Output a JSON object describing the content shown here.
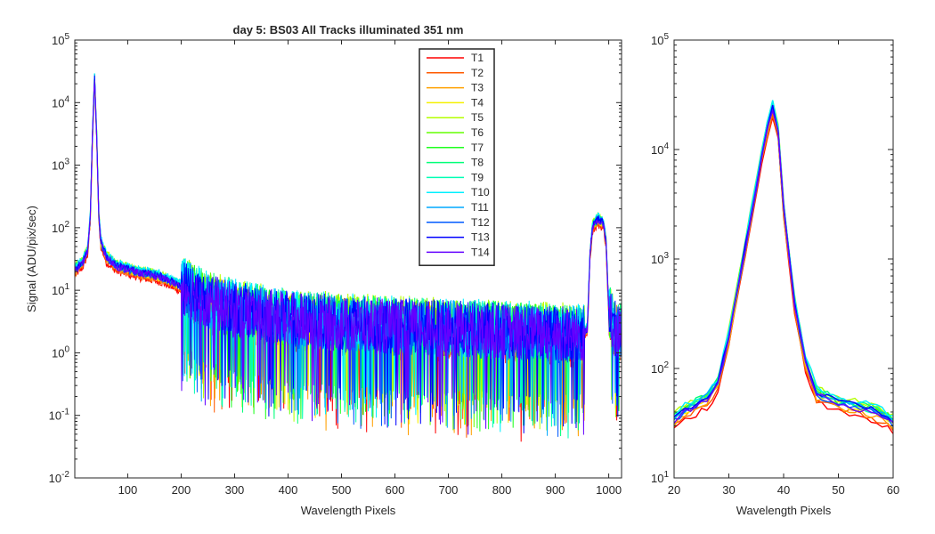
{
  "chart_data": [
    {
      "type": "line",
      "title": "day 5: BS03   All Tracks illuminated   351 nm",
      "xlabel": "Wavelength Pixels",
      "ylabel": "Signal (ADU/pix/sec)",
      "xlim": [
        1,
        1024
      ],
      "ylim": [
        0.01,
        100000
      ],
      "yscale": "log",
      "xticks": [
        100,
        200,
        300,
        400,
        500,
        600,
        700,
        800,
        900,
        1000
      ],
      "xtick_labels": [
        "100",
        "200",
        "300",
        "400",
        "500",
        "600",
        "700",
        "800",
        "900",
        "1000"
      ],
      "ytick_labels": [
        {
          "value": 0.01,
          "base": "10",
          "exp": "-2"
        },
        {
          "value": 0.1,
          "base": "10",
          "exp": "-1"
        },
        {
          "value": 1,
          "base": "10",
          "exp": "0"
        },
        {
          "value": 10,
          "base": "10",
          "exp": "1"
        },
        {
          "value": 100,
          "base": "10",
          "exp": "2"
        },
        {
          "value": 1000,
          "base": "10",
          "exp": "3"
        },
        {
          "value": 10000,
          "base": "10",
          "exp": "4"
        },
        {
          "value": 100000,
          "base": "10",
          "exp": "5"
        }
      ],
      "legend_position": "top-center",
      "series_profile": {
        "x": [
          1,
          15,
          25,
          30,
          34,
          38,
          42,
          46,
          50,
          60,
          80,
          120,
          160,
          200,
          250,
          300,
          400,
          500,
          600,
          700,
          800,
          900,
          950,
          960,
          965,
          970,
          980,
          990,
          995,
          1000,
          1010,
          1024
        ],
        "y": [
          22,
          28,
          45,
          150,
          3000,
          27000,
          3000,
          150,
          60,
          35,
          25,
          20,
          17,
          12,
          7,
          5,
          3.5,
          3,
          2.7,
          2.5,
          2.3,
          2.1,
          2.0,
          2.5,
          40,
          110,
          140,
          120,
          60,
          5,
          2.5,
          2.2
        ]
      },
      "series": [
        {
          "name": "T1",
          "color": "#ff0000",
          "scale": 0.8
        },
        {
          "name": "T2",
          "color": "#ff5a00",
          "scale": 0.85
        },
        {
          "name": "T3",
          "color": "#ffa000",
          "scale": 0.9
        },
        {
          "name": "T4",
          "color": "#f5f000",
          "scale": 0.95
        },
        {
          "name": "T5",
          "color": "#b4ff00",
          "scale": 1.1
        },
        {
          "name": "T6",
          "color": "#64ff00",
          "scale": 1.05
        },
        {
          "name": "T7",
          "color": "#1eff1e",
          "scale": 1.0
        },
        {
          "name": "T8",
          "color": "#00ff78",
          "scale": 1.05
        },
        {
          "name": "T9",
          "color": "#00ffb4",
          "scale": 1.0
        },
        {
          "name": "T10",
          "color": "#00f0ff",
          "scale": 1.1
        },
        {
          "name": "T11",
          "color": "#00a8ff",
          "scale": 1.0
        },
        {
          "name": "T12",
          "color": "#005aff",
          "scale": 0.95
        },
        {
          "name": "T13",
          "color": "#0000ff",
          "scale": 1.0
        },
        {
          "name": "T14",
          "color": "#6400ff",
          "scale": 0.95
        }
      ]
    },
    {
      "type": "line",
      "title": "",
      "xlabel": "Wavelength Pixels",
      "ylabel": "",
      "xlim": [
        20,
        60
      ],
      "ylim": [
        10,
        100000
      ],
      "yscale": "log",
      "xticks": [
        20,
        30,
        40,
        50,
        60
      ],
      "xtick_labels": [
        "20",
        "30",
        "40",
        "50",
        "60"
      ],
      "ytick_labels": [
        {
          "value": 10,
          "base": "10",
          "exp": "1"
        },
        {
          "value": 100,
          "base": "10",
          "exp": "2"
        },
        {
          "value": 1000,
          "base": "10",
          "exp": "3"
        },
        {
          "value": 10000,
          "base": "10",
          "exp": "4"
        },
        {
          "value": 100000,
          "base": "10",
          "exp": "5"
        }
      ],
      "series_profile": {
        "x": [
          20,
          22,
          24,
          26,
          28,
          30,
          32,
          34,
          36,
          37,
          38,
          39,
          40,
          42,
          44,
          46,
          48,
          50,
          52,
          54,
          56,
          58,
          60
        ],
        "y": [
          35,
          42,
          48,
          55,
          75,
          200,
          700,
          2500,
          9000,
          16000,
          25000,
          15000,
          3000,
          400,
          120,
          60,
          55,
          50,
          47,
          45,
          42,
          38,
          33
        ]
      }
    }
  ]
}
